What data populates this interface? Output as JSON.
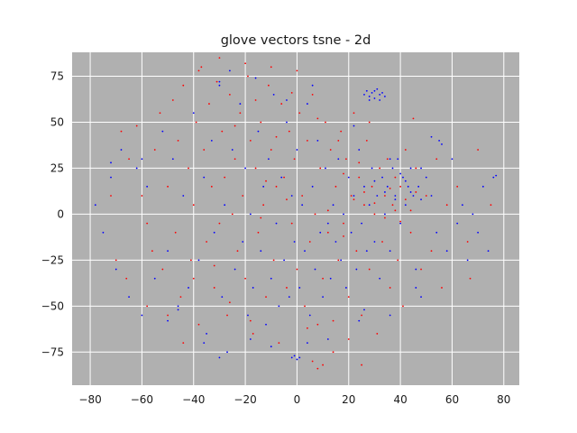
{
  "chart_data": {
    "type": "scatter",
    "title": "glove vectors tsne - 2d",
    "xlabel": "",
    "ylabel": "",
    "xlim": [
      -87,
      86
    ],
    "ylim": [
      -93,
      88
    ],
    "x_ticks": [
      -80,
      -60,
      -40,
      -20,
      0,
      20,
      40,
      60,
      80
    ],
    "y_ticks": [
      -75,
      -50,
      -25,
      0,
      25,
      50,
      75
    ],
    "grid": true,
    "legend": "none",
    "background_color": "#b0b0b0",
    "grid_color": "#ffffff",
    "series": [
      {
        "color": "#ff0000",
        "points": [
          [
            -68,
            45
          ],
          [
            -65,
            30
          ],
          [
            -62,
            48
          ],
          [
            -60,
            10
          ],
          [
            -58,
            -5
          ],
          [
            -56,
            -20
          ],
          [
            -55,
            35
          ],
          [
            -53,
            55
          ],
          [
            -52,
            -30
          ],
          [
            -50,
            15
          ],
          [
            -48,
            62
          ],
          [
            -47,
            -10
          ],
          [
            -46,
            40
          ],
          [
            -45,
            -45
          ],
          [
            -44,
            70
          ],
          [
            -42,
            25
          ],
          [
            -41,
            -25
          ],
          [
            -40,
            5
          ],
          [
            -39,
            50
          ],
          [
            -38,
            -60
          ],
          [
            -37,
            80
          ],
          [
            -36,
            35
          ],
          [
            -35,
            -15
          ],
          [
            -34,
            60
          ],
          [
            -33,
            15
          ],
          [
            -32,
            -40
          ],
          [
            -31,
            72
          ],
          [
            -30,
            -5
          ],
          [
            -29,
            45
          ],
          [
            -28,
            20
          ],
          [
            -27,
            -55
          ],
          [
            -26,
            65
          ],
          [
            -25,
            0
          ],
          [
            -24,
            30
          ],
          [
            -23,
            -20
          ],
          [
            -22,
            55
          ],
          [
            -21,
            10
          ],
          [
            -20,
            -35
          ],
          [
            -19,
            75
          ],
          [
            -18,
            40
          ],
          [
            -17,
            -65
          ],
          [
            -16,
            25
          ],
          [
            -15,
            -10
          ],
          [
            -14,
            50
          ],
          [
            -13,
            5
          ],
          [
            -12,
            -45
          ],
          [
            -11,
            70
          ],
          [
            -10,
            35
          ],
          [
            -9,
            -25
          ],
          [
            -8,
            15
          ],
          [
            -7,
            -70
          ],
          [
            -6,
            60
          ],
          [
            -5,
            20
          ],
          [
            -4,
            -40
          ],
          [
            -3,
            45
          ],
          [
            -2,
            -5
          ],
          [
            -1,
            30
          ],
          [
            0,
            -30
          ],
          [
            1,
            55
          ],
          [
            2,
            10
          ],
          [
            3,
            -50
          ],
          [
            4,
            40
          ],
          [
            5,
            -15
          ],
          [
            6,
            65
          ],
          [
            7,
            0
          ],
          [
            8,
            -60
          ],
          [
            9,
            25
          ],
          [
            10,
            -35
          ],
          [
            11,
            50
          ],
          [
            12,
            -10
          ],
          [
            13,
            35
          ],
          [
            14,
            -75
          ],
          [
            15,
            15
          ],
          [
            16,
            -25
          ],
          [
            17,
            45
          ],
          [
            18,
            -5
          ],
          [
            19,
            30
          ],
          [
            20,
            -45
          ],
          [
            21,
            10
          ],
          [
            22,
            55
          ],
          [
            23,
            -20
          ],
          [
            24,
            20
          ],
          [
            25,
            -55
          ],
          [
            26,
            5
          ],
          [
            27,
            40
          ],
          [
            28,
            -30
          ],
          [
            29,
            15
          ],
          [
            30,
            0
          ],
          [
            31,
            -65
          ],
          [
            32,
            25
          ],
          [
            33,
            -15
          ],
          [
            34,
            10
          ],
          [
            35,
            30
          ],
          [
            36,
            -40
          ],
          [
            37,
            5
          ],
          [
            38,
            20
          ],
          [
            39,
            -25
          ],
          [
            40,
            15
          ],
          [
            41,
            -50
          ],
          [
            42,
            35
          ],
          [
            44,
            -10
          ],
          [
            46,
            25
          ],
          [
            48,
            -30
          ],
          [
            50,
            10
          ],
          [
            52,
            -20
          ],
          [
            54,
            30
          ],
          [
            56,
            -40
          ],
          [
            58,
            5
          ],
          [
            62,
            15
          ],
          [
            66,
            -15
          ],
          [
            -50,
            -55
          ],
          [
            -44,
            -70
          ],
          [
            -38,
            78
          ],
          [
            -30,
            85
          ],
          [
            -20,
            82
          ],
          [
            -10,
            80
          ],
          [
            0,
            78
          ],
          [
            10,
            -82
          ],
          [
            8,
            -84
          ],
          [
            6,
            -80
          ],
          [
            25,
            -82
          ],
          [
            28,
            50
          ],
          [
            45,
            52
          ],
          [
            67,
            -35
          ],
          [
            70,
            35
          ],
          [
            75,
            5
          ],
          [
            -72,
            10
          ],
          [
            -70,
            -25
          ],
          [
            -66,
            -35
          ],
          [
            -58,
            -50
          ],
          [
            -26,
            -48
          ],
          [
            -18,
            -58
          ],
          [
            -12,
            18
          ],
          [
            -4,
            8
          ],
          [
            12,
            2
          ],
          [
            18,
            -12
          ],
          [
            22,
            8
          ],
          [
            26,
            12
          ],
          [
            30,
            6
          ],
          [
            34,
            -2
          ],
          [
            36,
            14
          ],
          [
            38,
            2
          ],
          [
            40,
            -4
          ],
          [
            42,
            8
          ],
          [
            44,
            2
          ],
          [
            46,
            12
          ],
          [
            -40,
            -35
          ],
          [
            -32,
            -28
          ],
          [
            -24,
            48
          ],
          [
            -16,
            62
          ],
          [
            -8,
            42
          ],
          [
            4,
            -62
          ],
          [
            14,
            -58
          ],
          [
            20,
            -68
          ],
          [
            18,
            22
          ],
          [
            24,
            28
          ],
          [
            16,
            40
          ],
          [
            8,
            52
          ],
          [
            -2,
            66
          ],
          [
            -14,
            -2
          ]
        ]
      },
      {
        "color": "#0000ff",
        "points": [
          [
            -78,
            5
          ],
          [
            -75,
            -10
          ],
          [
            -72,
            20
          ],
          [
            -70,
            -30
          ],
          [
            -68,
            35
          ],
          [
            -65,
            -45
          ],
          [
            -62,
            25
          ],
          [
            -60,
            -55
          ],
          [
            -58,
            15
          ],
          [
            -55,
            -35
          ],
          [
            -52,
            45
          ],
          [
            -50,
            -20
          ],
          [
            -48,
            30
          ],
          [
            -46,
            -50
          ],
          [
            -44,
            10
          ],
          [
            -42,
            -40
          ],
          [
            -40,
            55
          ],
          [
            -38,
            -25
          ],
          [
            -36,
            20
          ],
          [
            -35,
            -65
          ],
          [
            -33,
            40
          ],
          [
            -32,
            -10
          ],
          [
            -30,
            70
          ],
          [
            -29,
            -45
          ],
          [
            -28,
            5
          ],
          [
            -27,
            -75
          ],
          [
            -25,
            35
          ],
          [
            -24,
            -30
          ],
          [
            -22,
            60
          ],
          [
            -21,
            -15
          ],
          [
            -20,
            25
          ],
          [
            -19,
            -55
          ],
          [
            -18,
            0
          ],
          [
            -17,
            -40
          ],
          [
            -15,
            45
          ],
          [
            -14,
            -20
          ],
          [
            -13,
            15
          ],
          [
            -12,
            -60
          ],
          [
            -11,
            30
          ],
          [
            -10,
            -35
          ],
          [
            -9,
            65
          ],
          [
            -8,
            -5
          ],
          [
            -7,
            -50
          ],
          [
            -6,
            20
          ],
          [
            -5,
            -25
          ],
          [
            -4,
            50
          ],
          [
            -3,
            -45
          ],
          [
            -2,
            10
          ],
          [
            -1,
            -15
          ],
          [
            0,
            35
          ],
          [
            1,
            -40
          ],
          [
            2,
            5
          ],
          [
            3,
            -20
          ],
          [
            4,
            60
          ],
          [
            5,
            -55
          ],
          [
            6,
            15
          ],
          [
            7,
            -30
          ],
          [
            8,
            40
          ],
          [
            9,
            -10
          ],
          [
            10,
            -45
          ],
          [
            11,
            25
          ],
          [
            12,
            -5
          ],
          [
            13,
            -35
          ],
          [
            14,
            5
          ],
          [
            15,
            -15
          ],
          [
            16,
            30
          ],
          [
            17,
            -25
          ],
          [
            18,
            0
          ],
          [
            19,
            -40
          ],
          [
            20,
            20
          ],
          [
            21,
            -10
          ],
          [
            22,
            10
          ],
          [
            23,
            -30
          ],
          [
            24,
            35
          ],
          [
            25,
            -5
          ],
          [
            26,
            15
          ],
          [
            27,
            -20
          ],
          [
            28,
            5
          ],
          [
            29,
            25
          ],
          [
            30,
            -15
          ],
          [
            31,
            10
          ],
          [
            32,
            -35
          ],
          [
            33,
            20
          ],
          [
            34,
            0
          ],
          [
            35,
            15
          ],
          [
            36,
            -20
          ],
          [
            37,
            25
          ],
          [
            38,
            10
          ],
          [
            39,
            30
          ],
          [
            40,
            -5
          ],
          [
            41,
            20
          ],
          [
            42,
            5
          ],
          [
            43,
            15
          ],
          [
            44,
            25
          ],
          [
            45,
            10
          ],
          [
            46,
            -30
          ],
          [
            47,
            15
          ],
          [
            48,
            25
          ],
          [
            50,
            20
          ],
          [
            52,
            10
          ],
          [
            54,
            -10
          ],
          [
            55,
            40
          ],
          [
            58,
            -20
          ],
          [
            60,
            30
          ],
          [
            64,
            5
          ],
          [
            66,
            -25
          ],
          [
            70,
            -10
          ],
          [
            72,
            15
          ],
          [
            76,
            20
          ],
          [
            77,
            21
          ],
          [
            26,
            65
          ],
          [
            27,
            67
          ],
          [
            28,
            64
          ],
          [
            29,
            66
          ],
          [
            30,
            63
          ],
          [
            31,
            68
          ],
          [
            32,
            65
          ],
          [
            33,
            66
          ],
          [
            34,
            64
          ],
          [
            30,
            67
          ],
          [
            28,
            62
          ],
          [
            32,
            62
          ],
          [
            -2,
            -78
          ],
          [
            -1,
            -77
          ],
          [
            0,
            -79
          ],
          [
            1,
            -78
          ],
          [
            -72,
            28
          ],
          [
            -60,
            30
          ],
          [
            -50,
            -58
          ],
          [
            -46,
            -52
          ],
          [
            -30,
            72
          ],
          [
            -26,
            78
          ],
          [
            -16,
            74
          ],
          [
            -4,
            62
          ],
          [
            6,
            70
          ],
          [
            22,
            48
          ],
          [
            26,
            -52
          ],
          [
            36,
            -55
          ],
          [
            46,
            -40
          ],
          [
            48,
            -45
          ],
          [
            52,
            42
          ],
          [
            56,
            38
          ],
          [
            62,
            -5
          ],
          [
            68,
            0
          ],
          [
            74,
            -20
          ],
          [
            -36,
            -70
          ],
          [
            -30,
            -78
          ],
          [
            -18,
            -68
          ],
          [
            -10,
            -72
          ],
          [
            4,
            -70
          ],
          [
            12,
            -68
          ],
          [
            24,
            -58
          ],
          [
            36,
            30
          ],
          [
            40,
            22
          ],
          [
            42,
            18
          ],
          [
            44,
            12
          ],
          [
            48,
            8
          ],
          [
            38,
            8
          ],
          [
            34,
            12
          ],
          [
            30,
            18
          ]
        ]
      }
    ]
  }
}
